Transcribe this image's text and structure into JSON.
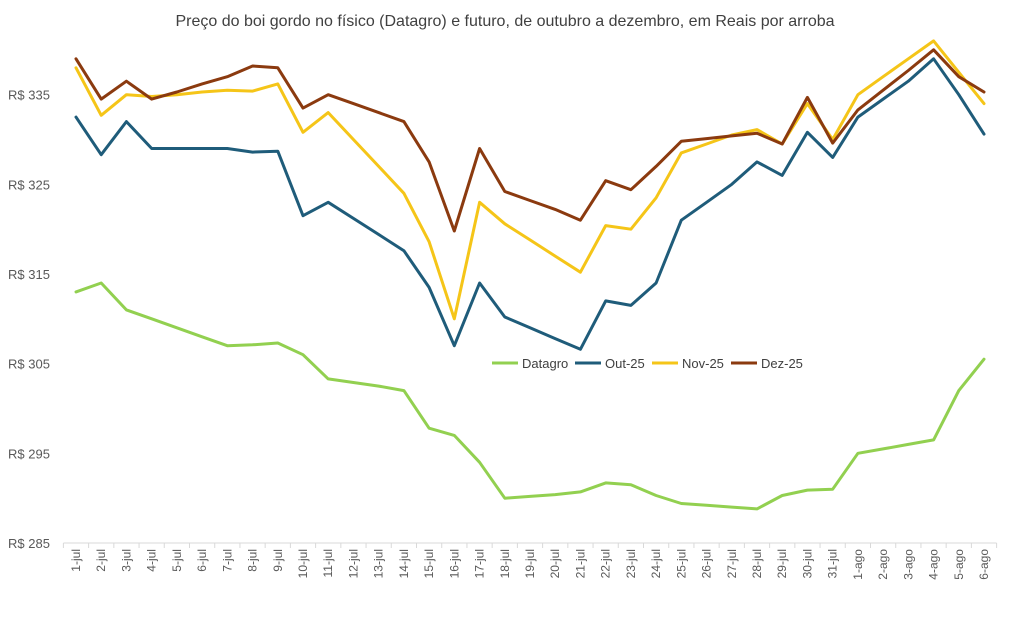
{
  "chart_data": {
    "type": "line",
    "title": "Preço do boi gordo no físico (Datagro) e futuro, de outubro a dezembro, em Reais por arroba",
    "xlabel": "",
    "ylabel": "",
    "ylim": [
      285,
      345
    ],
    "ytick_values": [
      285,
      295,
      305,
      315,
      325,
      335
    ],
    "ytick_labels": [
      "R$ 285",
      "R$ 295",
      "R$ 305",
      "R$ 315",
      "R$ 325",
      "R$ 335"
    ],
    "grid": false,
    "legend_position": "center",
    "categories": [
      "1-jul",
      "2-jul",
      "3-jul",
      "4-jul",
      "5-jul",
      "6-jul",
      "7-jul",
      "8-jul",
      "9-jul",
      "10-jul",
      "11-jul",
      "12-jul",
      "13-jul",
      "14-jul",
      "15-jul",
      "16-jul",
      "17-jul",
      "18-jul",
      "19-jul",
      "20-jul",
      "21-jul",
      "22-jul",
      "23-jul",
      "24-jul",
      "25-jul",
      "26-jul",
      "27-jul",
      "28-jul",
      "29-jul",
      "30-jul",
      "31-jul",
      "1-ago",
      "2-ago",
      "3-ago",
      "4-ago",
      "5-ago",
      "6-ago"
    ],
    "series": [
      {
        "name": "Datagro",
        "color": "#92d050",
        "values": [
          313.0,
          314.0,
          311.0,
          310.0,
          309.0,
          308.0,
          307.0,
          307.1,
          307.3,
          306.0,
          303.3,
          302.9,
          302.5,
          302.0,
          297.8,
          297.0,
          294.0,
          290.0,
          290.2,
          290.4,
          290.7,
          291.7,
          291.5,
          290.3,
          289.4,
          289.2,
          289.0,
          288.8,
          290.3,
          290.9,
          291.0,
          295.0,
          295.5,
          296.0,
          296.5,
          302.0,
          305.5
        ]
      },
      {
        "name": "Out-25",
        "color": "#1f5c7a",
        "values": [
          332.5,
          328.3,
          332.0,
          329.0,
          329.0,
          329.0,
          329.0,
          328.6,
          328.7,
          321.5,
          323.0,
          321.2,
          319.4,
          317.6,
          313.5,
          307.0,
          314.0,
          310.2,
          309.0,
          307.8,
          306.6,
          312.0,
          311.5,
          314.0,
          321.0,
          323.0,
          325.0,
          327.5,
          326.0,
          330.8,
          328.0,
          332.5,
          334.5,
          336.5,
          339.0,
          335.0,
          330.6
        ]
      },
      {
        "name": "Nov-25",
        "color": "#f5c518",
        "values": [
          338.0,
          332.7,
          335.0,
          334.8,
          335.0,
          335.3,
          335.5,
          335.4,
          336.2,
          330.8,
          333.0,
          330.0,
          327.0,
          324.0,
          318.6,
          310.0,
          323.0,
          320.6,
          318.8,
          317.0,
          315.2,
          320.4,
          320.0,
          323.5,
          328.5,
          329.5,
          330.5,
          331.1,
          329.5,
          334.0,
          330.0,
          335.0,
          337.0,
          339.0,
          341.0,
          337.5,
          334.0
        ]
      },
      {
        "name": "Dez-25",
        "color": "#8b3a0f",
        "values": [
          339.0,
          334.5,
          336.5,
          334.5,
          335.3,
          336.2,
          337.0,
          338.2,
          338.0,
          333.5,
          335.0,
          334.0,
          333.0,
          332.0,
          327.5,
          319.8,
          329.0,
          324.2,
          323.2,
          322.2,
          321.0,
          325.4,
          324.4,
          327.0,
          329.8,
          330.1,
          330.4,
          330.7,
          329.5,
          334.7,
          329.6,
          333.3,
          335.5,
          337.7,
          340.0,
          337.0,
          335.3
        ]
      }
    ]
  }
}
